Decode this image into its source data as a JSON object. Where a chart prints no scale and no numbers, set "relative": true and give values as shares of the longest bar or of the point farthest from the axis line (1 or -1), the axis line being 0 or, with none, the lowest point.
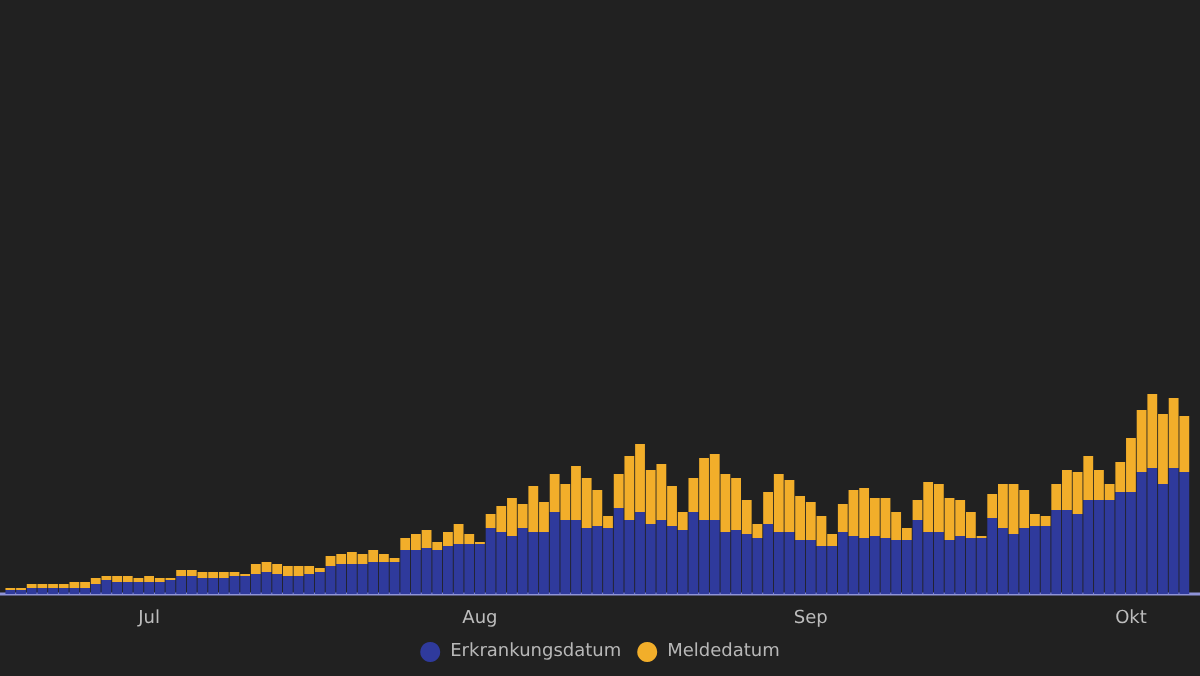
{
  "chart_data": {
    "type": "bar",
    "stacked": true,
    "relative": true,
    "legend": "bottom",
    "grid": false,
    "x": [
      "--06-18",
      "--06-19",
      "--06-20",
      "--06-21",
      "--06-22",
      "--06-23",
      "--06-24",
      "--06-25",
      "--06-26",
      "--06-27",
      "--06-28",
      "--06-29",
      "--06-30",
      "--07-01",
      "--07-02",
      "--07-03",
      "--07-04",
      "--07-05",
      "--07-06",
      "--07-07",
      "--07-08",
      "--07-09",
      "--07-10",
      "--07-11",
      "--07-12",
      "--07-13",
      "--07-14",
      "--07-15",
      "--07-16",
      "--07-17",
      "--07-18",
      "--07-19",
      "--07-20",
      "--07-21",
      "--07-22",
      "--07-23",
      "--07-24",
      "--07-25",
      "--07-26",
      "--07-27",
      "--07-28",
      "--07-29",
      "--07-30",
      "--07-31",
      "--08-01",
      "--08-02",
      "--08-03",
      "--08-04",
      "--08-05",
      "--08-06",
      "--08-07",
      "--08-08",
      "--08-09",
      "--08-10",
      "--08-11",
      "--08-12",
      "--08-13",
      "--08-14",
      "--08-15",
      "--08-16",
      "--08-17",
      "--08-18",
      "--08-19",
      "--08-20",
      "--08-21",
      "--08-22",
      "--08-23",
      "--08-24",
      "--08-25",
      "--08-26",
      "--08-27",
      "--08-28",
      "--08-29",
      "--08-30",
      "--08-31",
      "--09-01",
      "--09-02",
      "--09-03",
      "--09-04",
      "--09-05",
      "--09-06",
      "--09-07",
      "--09-08",
      "--09-09",
      "--09-10",
      "--09-11",
      "--09-12",
      "--09-13",
      "--09-14",
      "--09-15",
      "--09-16",
      "--09-17",
      "--09-18",
      "--09-19",
      "--09-20",
      "--09-21",
      "--09-22",
      "--09-23",
      "--09-24",
      "--09-25",
      "--09-26",
      "--09-27",
      "--09-28",
      "--09-29",
      "--09-30",
      "--10-01",
      "--10-02",
      "--10-03",
      "--10-04",
      "--10-05",
      "--10-06"
    ],
    "xlim": [
      "--06-17T12:00",
      "--10-07T00:00"
    ],
    "xticks": [
      {
        "value": "--07-01",
        "label": "Jul"
      },
      {
        "value": "--08-01",
        "label": "Aug"
      },
      {
        "value": "--09-01",
        "label": "Sep"
      },
      {
        "value": "--10-01",
        "label": "Okt"
      }
    ],
    "series": [
      {
        "name": "Erkrankungsdatum",
        "color": "#2f3a9c",
        "values": [
          0.02,
          0.02,
          0.03,
          0.03,
          0.03,
          0.03,
          0.03,
          0.03,
          0.05,
          0.07,
          0.06,
          0.06,
          0.06,
          0.06,
          0.06,
          0.07,
          0.09,
          0.09,
          0.08,
          0.08,
          0.08,
          0.09,
          0.09,
          0.1,
          0.11,
          0.1,
          0.09,
          0.09,
          0.1,
          0.11,
          0.14,
          0.15,
          0.15,
          0.15,
          0.16,
          0.16,
          0.16,
          0.22,
          0.22,
          0.23,
          0.22,
          0.24,
          0.25,
          0.25,
          0.25,
          0.33,
          0.31,
          0.29,
          0.33,
          0.31,
          0.31,
          0.41,
          0.37,
          0.37,
          0.33,
          0.34,
          0.33,
          0.43,
          0.37,
          0.41,
          0.35,
          0.37,
          0.34,
          0.32,
          0.41,
          0.37,
          0.37,
          0.31,
          0.32,
          0.3,
          0.28,
          0.35,
          0.31,
          0.31,
          0.27,
          0.27,
          0.24,
          0.24,
          0.31,
          0.29,
          0.28,
          0.29,
          0.28,
          0.27,
          0.27,
          0.37,
          0.31,
          0.31,
          0.27,
          0.29,
          0.28,
          0.28,
          0.38,
          0.33,
          0.3,
          0.33,
          0.34,
          0.34,
          0.42,
          0.42,
          0.4,
          0.47,
          0.47,
          0.47,
          0.51,
          0.51,
          0.61,
          0.63,
          0.55,
          0.63,
          0.61
        ]
      },
      {
        "name": "Meldedatum",
        "color": "#f2ae2a",
        "values": [
          0.01,
          0.01,
          0.02,
          0.02,
          0.02,
          0.02,
          0.03,
          0.03,
          0.03,
          0.02,
          0.03,
          0.03,
          0.02,
          0.03,
          0.02,
          0.01,
          0.03,
          0.03,
          0.03,
          0.03,
          0.03,
          0.02,
          0.01,
          0.05,
          0.05,
          0.05,
          0.05,
          0.05,
          0.04,
          0.02,
          0.05,
          0.05,
          0.06,
          0.05,
          0.06,
          0.04,
          0.02,
          0.06,
          0.08,
          0.09,
          0.04,
          0.07,
          0.1,
          0.05,
          0.01,
          0.07,
          0.13,
          0.19,
          0.12,
          0.23,
          0.15,
          0.19,
          0.18,
          0.27,
          0.25,
          0.18,
          0.06,
          0.17,
          0.32,
          0.34,
          0.27,
          0.28,
          0.2,
          0.09,
          0.17,
          0.31,
          0.33,
          0.29,
          0.26,
          0.17,
          0.07,
          0.16,
          0.29,
          0.26,
          0.22,
          0.19,
          0.15,
          0.06,
          0.14,
          0.23,
          0.25,
          0.19,
          0.2,
          0.14,
          0.06,
          0.1,
          0.25,
          0.24,
          0.21,
          0.18,
          0.13,
          0.01,
          0.12,
          0.22,
          0.25,
          0.19,
          0.06,
          0.05,
          0.13,
          0.2,
          0.21,
          0.22,
          0.15,
          0.08,
          0.15,
          0.27,
          0.31,
          0.37,
          0.35,
          0.35,
          0.28
        ]
      }
    ]
  }
}
